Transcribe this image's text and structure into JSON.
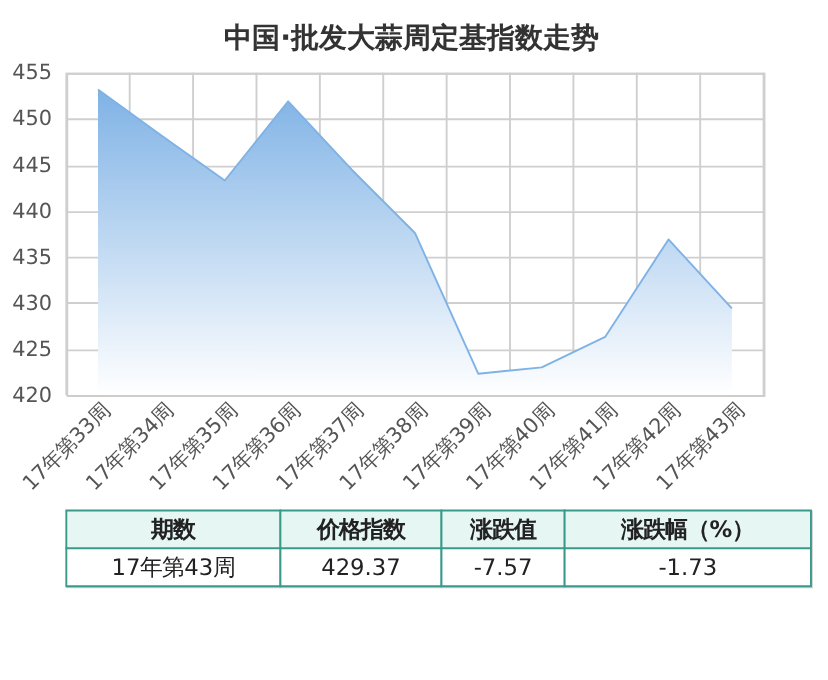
{
  "chart_data": {
    "type": "area",
    "title": "中国·批发大蒜周定基指数走势",
    "categories": [
      "17年第33周",
      "17年第34周",
      "17年第35周",
      "17年第36周",
      "17年第37周",
      "17年第38周",
      "17年第39周",
      "17年第40周",
      "17年第41周",
      "17年第42周",
      "17年第43周"
    ],
    "series": [
      {
        "color": "#7fb2e5",
        "values": [
          453.2,
          448.2,
          443.3,
          451.9,
          444.5,
          437.6,
          422.3,
          423.0,
          426.3,
          436.9,
          429.4
        ]
      }
    ],
    "ylim": [
      420,
      455
    ],
    "yticks": [
      420,
      425,
      430,
      435,
      440,
      445,
      450,
      455
    ],
    "grid": true,
    "annotations": [
      "期数",
      "价格指数",
      "涨跌值",
      "涨跌幅（%）",
      "17年第43周",
      "429.37",
      "-7.57",
      "-1.73"
    ]
  }
}
